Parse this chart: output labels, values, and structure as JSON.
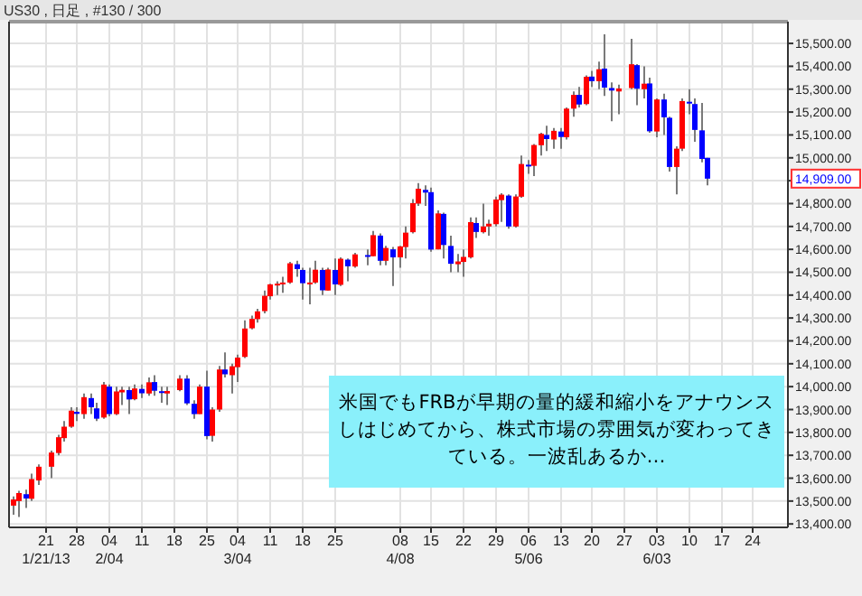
{
  "chart_data": {
    "type": "candlestick",
    "title": "US30 , 日足 , #130 / 300",
    "categories": [
      null,
      null,
      null,
      null,
      null,
      "21",
      null,
      null,
      null,
      null,
      "28",
      null,
      null,
      null,
      null,
      "04",
      null,
      null,
      null,
      null,
      "11",
      null,
      null,
      null,
      null,
      "18",
      null,
      null,
      null,
      null,
      "25",
      null,
      null,
      null,
      null,
      "04",
      null,
      null,
      null,
      null,
      "11",
      null,
      null,
      null,
      null,
      "18",
      null,
      null,
      null,
      null,
      "25",
      null,
      null,
      null,
      null,
      null,
      null,
      null,
      null,
      null,
      "08",
      null,
      null,
      null,
      null,
      "15",
      null,
      null,
      null,
      null,
      "22",
      null,
      null,
      null,
      null,
      "29",
      null,
      null,
      null,
      null,
      "06",
      null,
      null,
      null,
      null,
      "13",
      null,
      null,
      null,
      null,
      "20",
      null,
      null,
      null,
      null,
      "27",
      null,
      null,
      null,
      null,
      "03",
      null,
      null,
      null,
      null,
      "10",
      null,
      null,
      null,
      null,
      "17",
      null,
      null,
      null,
      null,
      "24",
      null,
      null,
      null,
      null,
      null
    ],
    "ohlc": [
      [
        13480,
        13520,
        13440,
        13507
      ],
      [
        13500,
        13545,
        13430,
        13535
      ],
      [
        13530,
        13550,
        13470,
        13511
      ],
      [
        13510,
        13620,
        13500,
        13596
      ],
      [
        13590,
        13660,
        13570,
        13650
      ],
      null,
      [
        13650,
        13720,
        13600,
        13712
      ],
      [
        13710,
        13790,
        13700,
        13779
      ],
      [
        13775,
        13850,
        13760,
        13825
      ],
      [
        13825,
        13910,
        13820,
        13895
      ],
      [
        13890,
        13910,
        13850,
        13881
      ],
      [
        13880,
        13970,
        13860,
        13954
      ],
      [
        13950,
        13970,
        13880,
        13910
      ],
      [
        13905,
        13930,
        13850,
        13860
      ],
      [
        13865,
        14020,
        13860,
        14009
      ],
      [
        14000,
        14010,
        13870,
        13880
      ],
      [
        13880,
        14000,
        13875,
        13979
      ],
      [
        13975,
        14000,
        13920,
        13986
      ],
      [
        13985,
        14000,
        13880,
        13944
      ],
      [
        13945,
        14010,
        13940,
        13992
      ],
      [
        13990,
        14010,
        13950,
        13971
      ],
      [
        13970,
        14040,
        13960,
        14019
      ],
      [
        14020,
        14050,
        13960,
        13982
      ],
      [
        13980,
        14000,
        13930,
        13973
      ],
      [
        13970,
        14000,
        13920,
        13981
      ],
      null,
      [
        13985,
        14050,
        13980,
        14035
      ],
      [
        14035,
        14050,
        13920,
        13927
      ],
      [
        13925,
        13940,
        13860,
        13880
      ],
      [
        13880,
        14010,
        13880,
        14000
      ],
      [
        14000,
        14070,
        13770,
        13784
      ],
      [
        13785,
        13910,
        13760,
        13900
      ],
      [
        13900,
        14090,
        13890,
        14075
      ],
      [
        14075,
        14150,
        14040,
        14054
      ],
      [
        14050,
        14100,
        13970,
        14089
      ],
      [
        14085,
        14140,
        14020,
        14127
      ],
      [
        14130,
        14290,
        14125,
        14254
      ],
      [
        14255,
        14310,
        14250,
        14296
      ],
      [
        14295,
        14340,
        14280,
        14329
      ],
      [
        14330,
        14420,
        14320,
        14397
      ],
      [
        14395,
        14450,
        14380,
        14447
      ],
      [
        14445,
        14460,
        14400,
        14450
      ],
      [
        14450,
        14480,
        14410,
        14455
      ],
      [
        14455,
        14545,
        14450,
        14539
      ],
      [
        14535,
        14550,
        14480,
        14514
      ],
      [
        14510,
        14520,
        14380,
        14452
      ],
      [
        14450,
        14520,
        14360,
        14455
      ],
      [
        14455,
        14550,
        14450,
        14511
      ],
      [
        14510,
        14520,
        14400,
        14421
      ],
      [
        14420,
        14520,
        14420,
        14512
      ],
      [
        14510,
        14560,
        14400,
        14447
      ],
      [
        14445,
        14565,
        14440,
        14559
      ],
      [
        14555,
        14560,
        14460,
        14526
      ],
      [
        14525,
        14585,
        14520,
        14578
      ],
      null,
      [
        14575,
        14600,
        14530,
        14572
      ],
      [
        14570,
        14680,
        14570,
        14662
      ],
      [
        14660,
        14670,
        14530,
        14550
      ],
      [
        14550,
        14615,
        14530,
        14606
      ],
      [
        14600,
        14610,
        14440,
        14565
      ],
      [
        14565,
        14615,
        14520,
        14613
      ],
      [
        14610,
        14700,
        14560,
        14673
      ],
      [
        14675,
        14820,
        14670,
        14802
      ],
      [
        14800,
        14890,
        14790,
        14865
      ],
      [
        14860,
        14880,
        14790,
        14848
      ],
      [
        14850,
        14870,
        14590,
        14599
      ],
      [
        14600,
        14770,
        14600,
        14757
      ],
      [
        14755,
        14760,
        14560,
        14619
      ],
      [
        14615,
        14660,
        14500,
        14537
      ],
      [
        14535,
        14580,
        14500,
        14547
      ],
      [
        14545,
        14600,
        14480,
        14567
      ],
      [
        14565,
        14740,
        14560,
        14719
      ],
      [
        14715,
        14740,
        14650,
        14676
      ],
      [
        14675,
        14800,
        14670,
        14700
      ],
      [
        14700,
        14730,
        14660,
        14712
      ],
      [
        14710,
        14830,
        14700,
        14818
      ],
      [
        14815,
        14845,
        14720,
        14839
      ],
      [
        14835,
        14840,
        14690,
        14700
      ],
      [
        14700,
        14840,
        14695,
        14831
      ],
      [
        14830,
        15010,
        14825,
        14973
      ],
      [
        14970,
        14990,
        14930,
        14968
      ],
      [
        14965,
        15060,
        14920,
        15056
      ],
      [
        15055,
        15110,
        15010,
        15105
      ],
      [
        15100,
        15140,
        15030,
        15082
      ],
      [
        15080,
        15130,
        15040,
        15118
      ],
      [
        15115,
        15130,
        15040,
        15091
      ],
      [
        15090,
        15220,
        15080,
        15215
      ],
      [
        15215,
        15290,
        15180,
        15275
      ],
      [
        15275,
        15310,
        15220,
        15233
      ],
      [
        15235,
        15360,
        15230,
        15354
      ],
      [
        15355,
        15380,
        15310,
        15335
      ],
      [
        15335,
        15420,
        15300,
        15387
      ],
      [
        15390,
        15540,
        15270,
        15307
      ],
      [
        15305,
        15330,
        15160,
        15294
      ],
      [
        15290,
        15320,
        15190,
        15303
      ],
      null,
      [
        15305,
        15520,
        15300,
        15409
      ],
      [
        15405,
        15410,
        15230,
        15302
      ],
      [
        15300,
        15400,
        15260,
        15324
      ],
      [
        15325,
        15350,
        15110,
        15116
      ],
      [
        15115,
        15260,
        15090,
        15255
      ],
      [
        15255,
        15280,
        15100,
        15177
      ],
      [
        15175,
        15180,
        14940,
        14960
      ],
      [
        14960,
        15050,
        14840,
        15040
      ],
      [
        15040,
        15260,
        15030,
        15248
      ],
      [
        15245,
        15300,
        15190,
        15239
      ],
      [
        15235,
        15260,
        15070,
        15122
      ],
      [
        15120,
        15240,
        14980,
        14995
      ],
      [
        15000,
        15000,
        14880,
        14909
      ],
      null,
      null,
      null,
      null,
      null,
      null,
      null,
      null,
      null,
      null,
      null,
      null
    ],
    "colors": [
      "#ff0000",
      "#ff0000",
      "#0000ff",
      "#ff0000",
      "#ff0000",
      null,
      "#ff0000",
      "#ff0000",
      "#ff0000",
      "#ff0000",
      "#0000ff",
      "#ff0000",
      "#0000ff",
      "#0000ff",
      "#ff0000",
      "#0000ff",
      "#ff0000",
      "#ff0000",
      "#0000ff",
      "#ff0000",
      "#0000ff",
      "#ff0000",
      "#0000ff",
      "#0000ff",
      "#ff0000",
      null,
      "#ff0000",
      "#0000ff",
      "#0000ff",
      "#ff0000",
      "#0000ff",
      "#ff0000",
      "#ff0000",
      "#0000ff",
      "#ff0000",
      "#ff0000",
      "#ff0000",
      "#ff0000",
      "#ff0000",
      "#ff0000",
      "#ff0000",
      "#ff0000",
      "#ff0000",
      "#ff0000",
      "#0000ff",
      "#0000ff",
      "#ff0000",
      "#ff0000",
      "#0000ff",
      "#ff0000",
      "#0000ff",
      "#ff0000",
      "#0000ff",
      "#ff0000",
      null,
      "#0000ff",
      "#ff0000",
      "#0000ff",
      "#ff0000",
      "#0000ff",
      "#ff0000",
      "#ff0000",
      "#ff0000",
      "#ff0000",
      "#0000ff",
      "#0000ff",
      "#ff0000",
      "#0000ff",
      "#0000ff",
      "#ff0000",
      "#ff0000",
      "#ff0000",
      "#0000ff",
      "#ff0000",
      "#ff0000",
      "#ff0000",
      "#ff0000",
      "#0000ff",
      "#ff0000",
      "#ff0000",
      "#0000ff",
      "#ff0000",
      "#ff0000",
      "#0000ff",
      "#ff0000",
      "#0000ff",
      "#ff0000",
      "#ff0000",
      "#0000ff",
      "#ff0000",
      "#0000ff",
      "#ff0000",
      "#0000ff",
      "#0000ff",
      "#ff0000",
      null,
      "#ff0000",
      "#0000ff",
      "#ff0000",
      "#0000ff",
      "#ff0000",
      "#0000ff",
      "#0000ff",
      "#ff0000",
      "#ff0000",
      "#0000ff",
      "#0000ff",
      "#0000ff",
      "#0000ff",
      null,
      null,
      null,
      null,
      null,
      null,
      null,
      null,
      null,
      null,
      null,
      null
    ],
    "ylim": [
      13385,
      15595
    ],
    "yticks": [
      {
        "value": 13400,
        "label": "13,400.00"
      },
      {
        "value": 13500,
        "label": "13,500.00"
      },
      {
        "value": 13600,
        "label": "13,600.00"
      },
      {
        "value": 13700,
        "label": "13,700.00"
      },
      {
        "value": 13800,
        "label": "13,800.00"
      },
      {
        "value": 13900,
        "label": "13,900.00"
      },
      {
        "value": 14000,
        "label": "14,000.00"
      },
      {
        "value": 14100,
        "label": "14,100.00"
      },
      {
        "value": 14200,
        "label": "14,200.00"
      },
      {
        "value": 14300,
        "label": "14,300.00"
      },
      {
        "value": 14400,
        "label": "14,400.00"
      },
      {
        "value": 14500,
        "label": "14,500.00"
      },
      {
        "value": 14600,
        "label": "14,600.00"
      },
      {
        "value": 14700,
        "label": "14,700.00"
      },
      {
        "value": 14800,
        "label": "14,800.00"
      },
      {
        "value": 14900,
        "label": null
      },
      {
        "value": 15000,
        "label": "15,000.00"
      },
      {
        "value": 15100,
        "label": "15,100.00"
      },
      {
        "value": 15200,
        "label": "15,200.00"
      },
      {
        "value": 15300,
        "label": "15,300.00"
      },
      {
        "value": 15400,
        "label": "15,400.00"
      },
      {
        "value": 15500,
        "label": "15,500.00"
      }
    ],
    "grid": true,
    "annotations": [
      "14,909.00",
      "1/21/13",
      "2/04",
      "3/04",
      "4/08",
      "5/06",
      "6/03",
      "米国でもFRBが早期の量的緩和縮小をアナウンスしはじめてから、株式市場の雰囲気が変わってきている。一波乱あるか…"
    ]
  }
}
